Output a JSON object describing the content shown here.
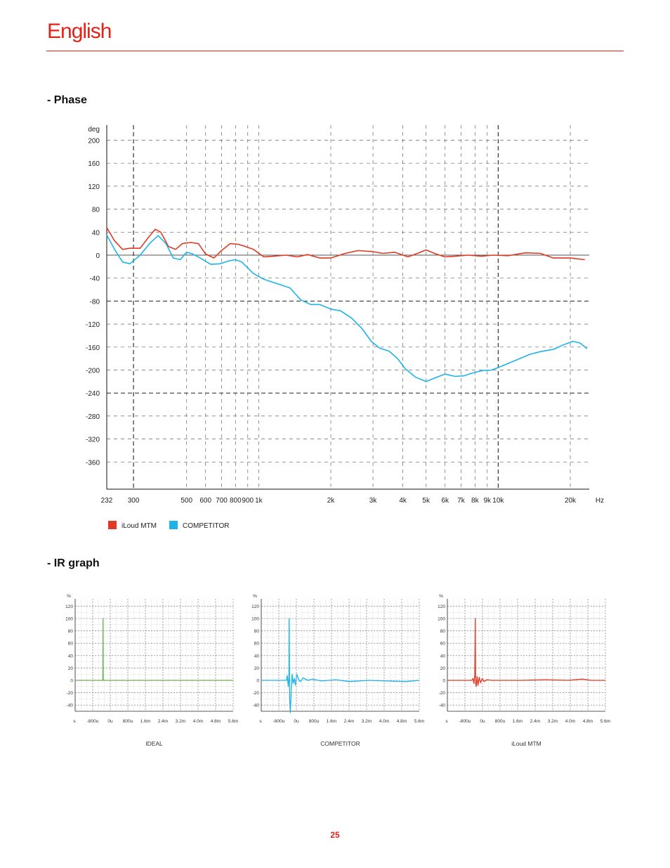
{
  "header": {
    "title": "English"
  },
  "sections": {
    "phase_heading": "- Phase",
    "ir_heading": "- IR graph"
  },
  "colors": {
    "brand_red": "#e2231a",
    "iloud": "#e03a24",
    "competitor": "#1db4e8",
    "ideal": "#6ab04c"
  },
  "legend": [
    {
      "label": "iLoud MTM",
      "color": "#e03a24"
    },
    {
      "label": "COMPETITOR",
      "color": "#1db4e8"
    }
  ],
  "chart_data": [
    {
      "type": "line",
      "ylabel": "deg",
      "xlabel": "Hz",
      "x_scale": "log",
      "xlim": [
        232,
        24000
      ],
      "ylim": [
        -400,
        210
      ],
      "y_ticks": [
        "200",
        "160",
        "120",
        "80",
        "40",
        "0",
        "-40",
        "-80",
        "-120",
        "-160",
        "-200",
        "-240",
        "-280",
        "-320",
        "-360"
      ],
      "x_ticks": [
        {
          "v": 232,
          "label": "232"
        },
        {
          "v": 300,
          "label": "300"
        },
        {
          "v": 500,
          "label": "500"
        },
        {
          "v": 600,
          "label": "600"
        },
        {
          "v": 700,
          "label": "700"
        },
        {
          "v": 800,
          "label": "800"
        },
        {
          "v": 900,
          "label": "900"
        },
        {
          "v": 1000,
          "label": "1k"
        },
        {
          "v": 2000,
          "label": "2k"
        },
        {
          "v": 3000,
          "label": "3k"
        },
        {
          "v": 4000,
          "label": "4k"
        },
        {
          "v": 5000,
          "label": "5k"
        },
        {
          "v": 6000,
          "label": "6k"
        },
        {
          "v": 7000,
          "label": "7k"
        },
        {
          "v": 8000,
          "label": "8k"
        },
        {
          "v": 9000,
          "label": "9k"
        },
        {
          "v": 10000,
          "label": "10k"
        },
        {
          "v": 20000,
          "label": "20k"
        }
      ],
      "x_unit_label": "Hz",
      "series": [
        {
          "name": "iLoud MTM",
          "color": "#e03a24",
          "points": [
            [
              232,
              48
            ],
            [
              250,
              25
            ],
            [
              270,
              10
            ],
            [
              290,
              12
            ],
            [
              320,
              12
            ],
            [
              345,
              30
            ],
            [
              370,
              45
            ],
            [
              390,
              40
            ],
            [
              420,
              15
            ],
            [
              450,
              10
            ],
            [
              480,
              20
            ],
            [
              520,
              22
            ],
            [
              560,
              20
            ],
            [
              600,
              2
            ],
            [
              650,
              -5
            ],
            [
              700,
              8
            ],
            [
              760,
              20
            ],
            [
              820,
              19
            ],
            [
              880,
              15
            ],
            [
              950,
              10
            ],
            [
              1050,
              -3
            ],
            [
              1150,
              -2
            ],
            [
              1300,
              0
            ],
            [
              1450,
              -3
            ],
            [
              1600,
              1
            ],
            [
              1800,
              -5
            ],
            [
              2000,
              -5
            ],
            [
              2300,
              3
            ],
            [
              2600,
              8
            ],
            [
              3000,
              6
            ],
            [
              3300,
              3
            ],
            [
              3700,
              5
            ],
            [
              4200,
              -3
            ],
            [
              4600,
              3
            ],
            [
              5000,
              9
            ],
            [
              5500,
              2
            ],
            [
              6000,
              -3
            ],
            [
              6600,
              -2
            ],
            [
              7500,
              0
            ],
            [
              8500,
              -2
            ],
            [
              9500,
              0
            ],
            [
              11000,
              -1
            ],
            [
              13000,
              4
            ],
            [
              15000,
              3
            ],
            [
              17000,
              -5
            ],
            [
              20000,
              -5
            ],
            [
              23000,
              -8
            ]
          ]
        },
        {
          "name": "COMPETITOR",
          "color": "#1db4e8",
          "points": [
            [
              232,
              35
            ],
            [
              250,
              10
            ],
            [
              270,
              -12
            ],
            [
              290,
              -15
            ],
            [
              320,
              0
            ],
            [
              350,
              20
            ],
            [
              380,
              34
            ],
            [
              410,
              20
            ],
            [
              440,
              -5
            ],
            [
              470,
              -8
            ],
            [
              500,
              5
            ],
            [
              530,
              2
            ],
            [
              570,
              -5
            ],
            [
              630,
              -16
            ],
            [
              690,
              -15
            ],
            [
              750,
              -10
            ],
            [
              800,
              -8
            ],
            [
              850,
              -12
            ],
            [
              950,
              -32
            ],
            [
              1050,
              -42
            ],
            [
              1200,
              -50
            ],
            [
              1350,
              -57
            ],
            [
              1500,
              -78
            ],
            [
              1650,
              -86
            ],
            [
              1800,
              -86
            ],
            [
              2000,
              -94
            ],
            [
              2200,
              -97
            ],
            [
              2450,
              -110
            ],
            [
              2700,
              -128
            ],
            [
              2950,
              -150
            ],
            [
              3200,
              -162
            ],
            [
              3500,
              -167
            ],
            [
              3800,
              -180
            ],
            [
              4100,
              -198
            ],
            [
              4500,
              -212
            ],
            [
              5000,
              -220
            ],
            [
              5500,
              -213
            ],
            [
              6000,
              -207
            ],
            [
              6600,
              -211
            ],
            [
              7200,
              -210
            ],
            [
              7800,
              -205
            ],
            [
              8600,
              -201
            ],
            [
              9400,
              -200
            ],
            [
              10500,
              -192
            ],
            [
              12000,
              -182
            ],
            [
              13500,
              -173
            ],
            [
              15000,
              -168
            ],
            [
              17000,
              -164
            ],
            [
              19000,
              -155
            ],
            [
              20500,
              -150
            ],
            [
              22000,
              -153
            ],
            [
              23500,
              -163
            ]
          ]
        }
      ]
    },
    {
      "type": "line",
      "title": "IDEAL",
      "ylabel": "%",
      "xlim": [
        -1200,
        5600
      ],
      "ylim": [
        -50,
        125
      ],
      "y_ticks": [
        "120",
        "100",
        "80",
        "60",
        "40",
        "20",
        "0",
        "-20",
        "-40"
      ],
      "x_ticks": [
        "s",
        "-800u",
        "0u",
        "800u",
        "1.6m",
        "2.4m",
        "3.2m",
        "4.0m",
        "4.8m",
        "5.6m"
      ],
      "series": [
        {
          "color": "#6ab04c",
          "points": [
            [
              -1200,
              0
            ],
            [
              -10,
              0
            ],
            [
              0,
              100
            ],
            [
              10,
              0
            ],
            [
              5600,
              0
            ]
          ]
        }
      ]
    },
    {
      "type": "line",
      "title": "COMPETITOR",
      "ylabel": "%",
      "xlim": [
        -1200,
        5600
      ],
      "ylim": [
        -50,
        125
      ],
      "y_ticks": [
        "120",
        "100",
        "80",
        "60",
        "40",
        "20",
        "0",
        "-20",
        "-40"
      ],
      "x_ticks": [
        "s",
        "-800u",
        "0u",
        "800u",
        "1.6m",
        "2.4m",
        "3.2m",
        "4.0m",
        "4.8m",
        "5.6m"
      ],
      "series": [
        {
          "color": "#1db4e8",
          "points": [
            [
              -1200,
              0
            ],
            [
              -120,
              0
            ],
            [
              -80,
              8
            ],
            [
              -40,
              -10
            ],
            [
              -10,
              5
            ],
            [
              0,
              100
            ],
            [
              20,
              -30
            ],
            [
              50,
              -52
            ],
            [
              90,
              -15
            ],
            [
              130,
              10
            ],
            [
              170,
              -5
            ],
            [
              220,
              3
            ],
            [
              270,
              -8
            ],
            [
              330,
              10
            ],
            [
              400,
              2
            ],
            [
              480,
              -2
            ],
            [
              600,
              4
            ],
            [
              800,
              0
            ],
            [
              1000,
              2
            ],
            [
              1400,
              -1
            ],
            [
              2000,
              1
            ],
            [
              2600,
              -2
            ],
            [
              3400,
              0
            ],
            [
              4200,
              -1
            ],
            [
              5000,
              -2
            ],
            [
              5600,
              0
            ]
          ]
        }
      ]
    },
    {
      "type": "line",
      "title": "iLoud MTM",
      "ylabel": "%",
      "xlim": [
        -1200,
        5600
      ],
      "ylim": [
        -50,
        125
      ],
      "y_ticks": [
        "120",
        "100",
        "80",
        "60",
        "40",
        "20",
        "0",
        "-20",
        "-40"
      ],
      "x_ticks": [
        "s",
        "-800u",
        "0u",
        "800u",
        "1.6m",
        "2.4m",
        "3.2m",
        "4.0m",
        "4.8m",
        "5.6m"
      ],
      "series": [
        {
          "color": "#e03a24",
          "points": [
            [
              -1200,
              0
            ],
            [
              -150,
              0
            ],
            [
              -100,
              3
            ],
            [
              -60,
              -5
            ],
            [
              -20,
              8
            ],
            [
              0,
              100
            ],
            [
              15,
              -5
            ],
            [
              40,
              -10
            ],
            [
              80,
              6
            ],
            [
              120,
              -8
            ],
            [
              170,
              5
            ],
            [
              230,
              -4
            ],
            [
              300,
              3
            ],
            [
              380,
              -2
            ],
            [
              500,
              1
            ],
            [
              700,
              0
            ],
            [
              1200,
              0
            ],
            [
              2000,
              0
            ],
            [
              3000,
              1
            ],
            [
              4000,
              0
            ],
            [
              4600,
              2
            ],
            [
              5000,
              0
            ],
            [
              5600,
              0
            ]
          ]
        }
      ]
    }
  ],
  "page_number": "25"
}
